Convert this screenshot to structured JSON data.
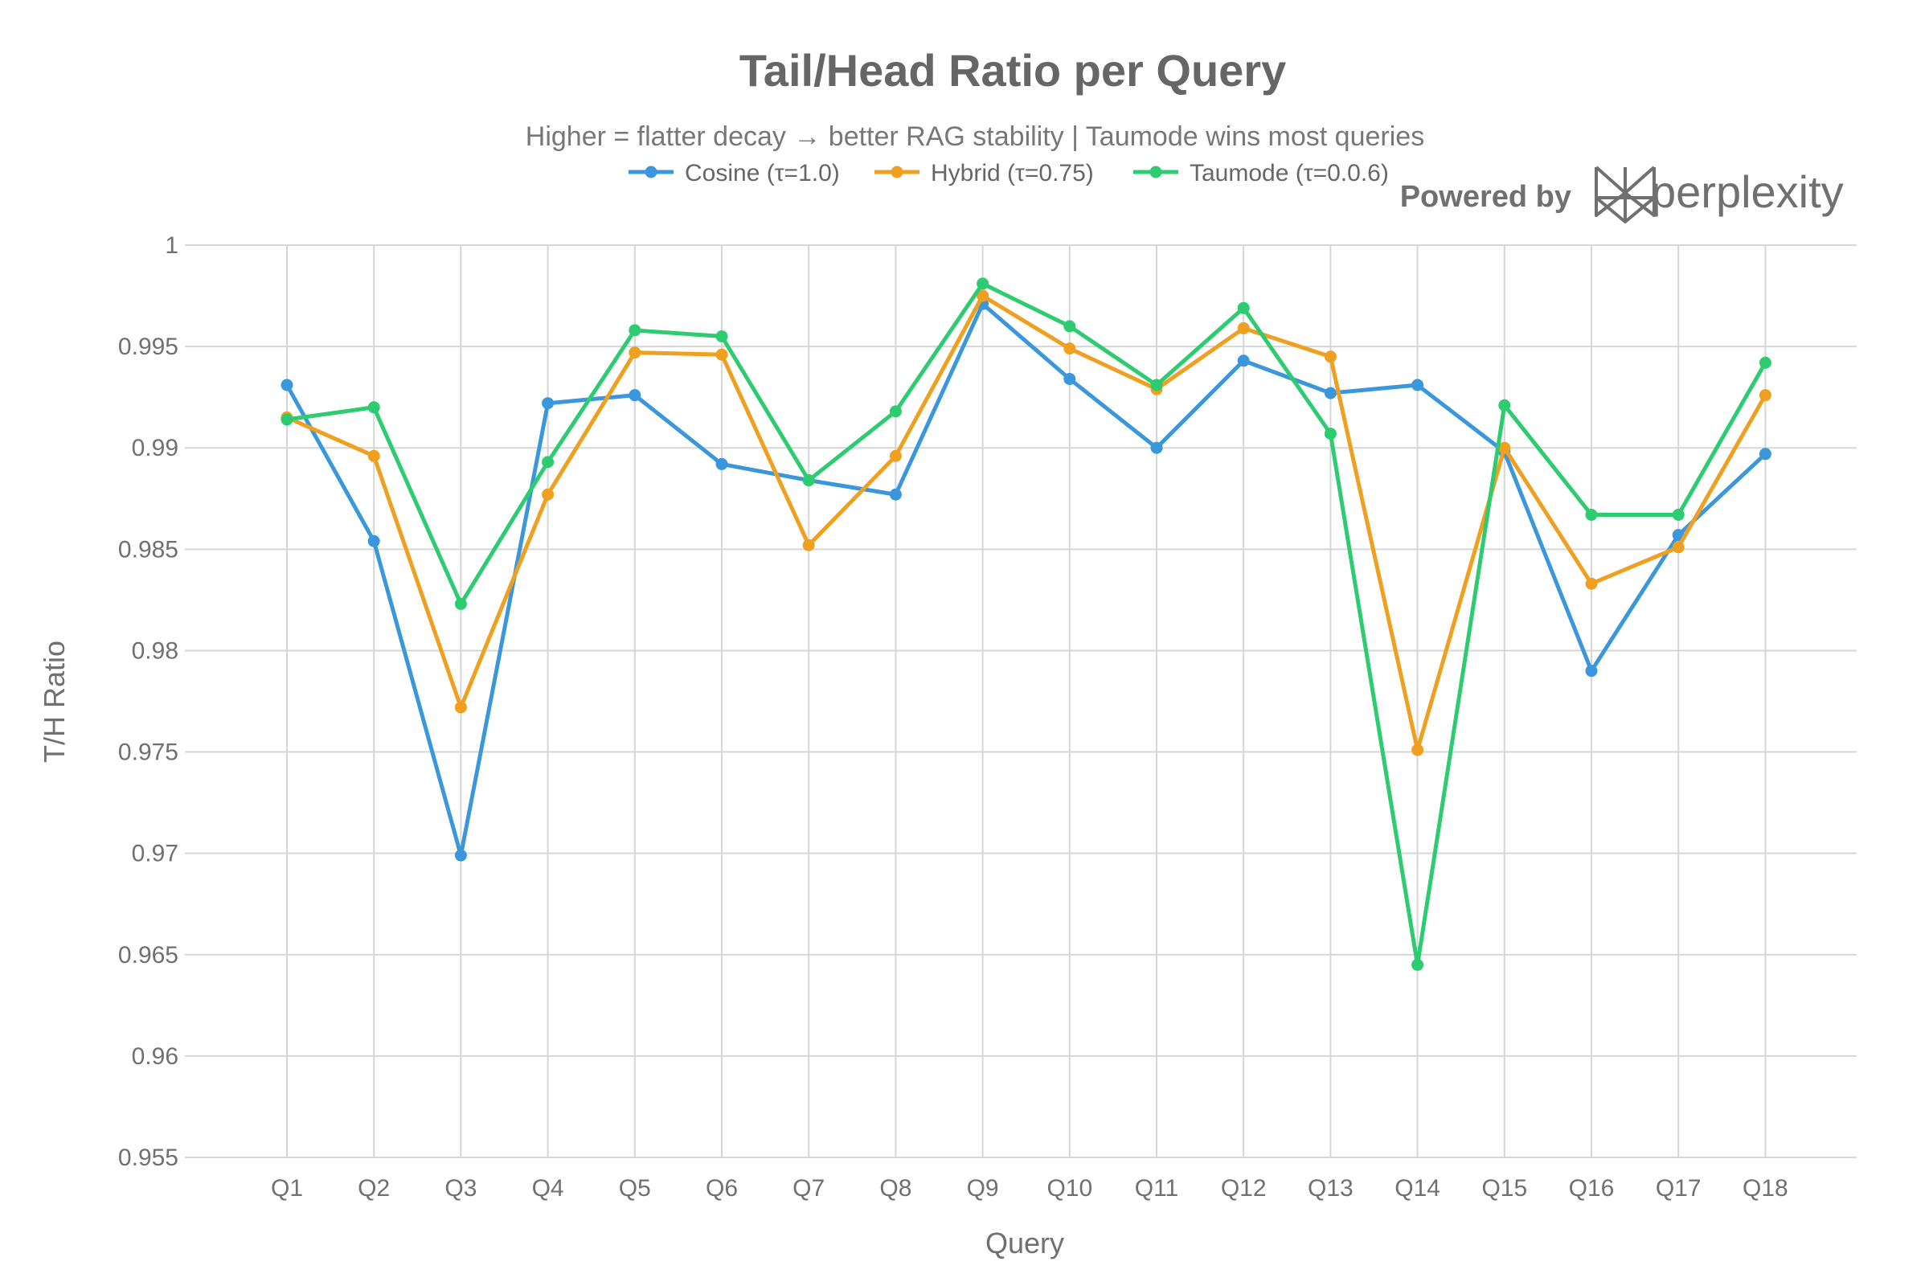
{
  "chart_data": {
    "type": "line",
    "title": "Tail/Head Ratio per Query",
    "subtitle": "Higher = flatter decay → better RAG stability | Taumode wins most queries",
    "xlabel": "Query",
    "ylabel": "T/H Ratio",
    "ylim": [
      0.955,
      1.0
    ],
    "yticks": [
      "0.955",
      "0.96",
      "0.965",
      "0.97",
      "0.975",
      "0.98",
      "0.985",
      "0.99",
      "0.995",
      "1"
    ],
    "categories": [
      "Q1",
      "Q2",
      "Q3",
      "Q4",
      "Q5",
      "Q6",
      "Q7",
      "Q8",
      "Q9",
      "Q10",
      "Q11",
      "Q12",
      "Q13",
      "Q14",
      "Q15",
      "Q16",
      "Q17",
      "Q18"
    ],
    "grid": true,
    "legend_position": "top-center",
    "series": [
      {
        "name": "Cosine (τ=1.0)",
        "color": "#3a97dc",
        "values": [
          0.9931,
          0.9854,
          0.9699,
          0.9922,
          0.9926,
          0.9892,
          0.9884,
          0.9877,
          0.9971,
          0.9934,
          0.99,
          0.9943,
          0.9927,
          0.9931,
          0.9898,
          0.979,
          0.9857,
          0.9897
        ]
      },
      {
        "name": "Hybrid (τ=0.75)",
        "color": "#f0a020",
        "values": [
          0.9915,
          0.9896,
          0.9772,
          0.9877,
          0.9947,
          0.9946,
          0.9852,
          0.9896,
          0.9975,
          0.9949,
          0.9929,
          0.9959,
          0.9945,
          0.9751,
          0.99,
          0.9833,
          0.9851,
          0.9926
        ]
      },
      {
        "name": "Taumode (τ=0.0.6)",
        "color": "#2ecc71",
        "values": [
          0.9914,
          0.992,
          0.9823,
          0.9893,
          0.9958,
          0.9955,
          0.9884,
          0.9918,
          0.9981,
          0.996,
          0.9931,
          0.9969,
          0.9907,
          0.9645,
          0.9921,
          0.9867,
          0.9867,
          0.9942
        ]
      }
    ]
  },
  "branding": {
    "powered_by": "Powered by",
    "name": "perplexity",
    "logo_icon": "perplexity-logo-icon",
    "color": "#707070"
  }
}
